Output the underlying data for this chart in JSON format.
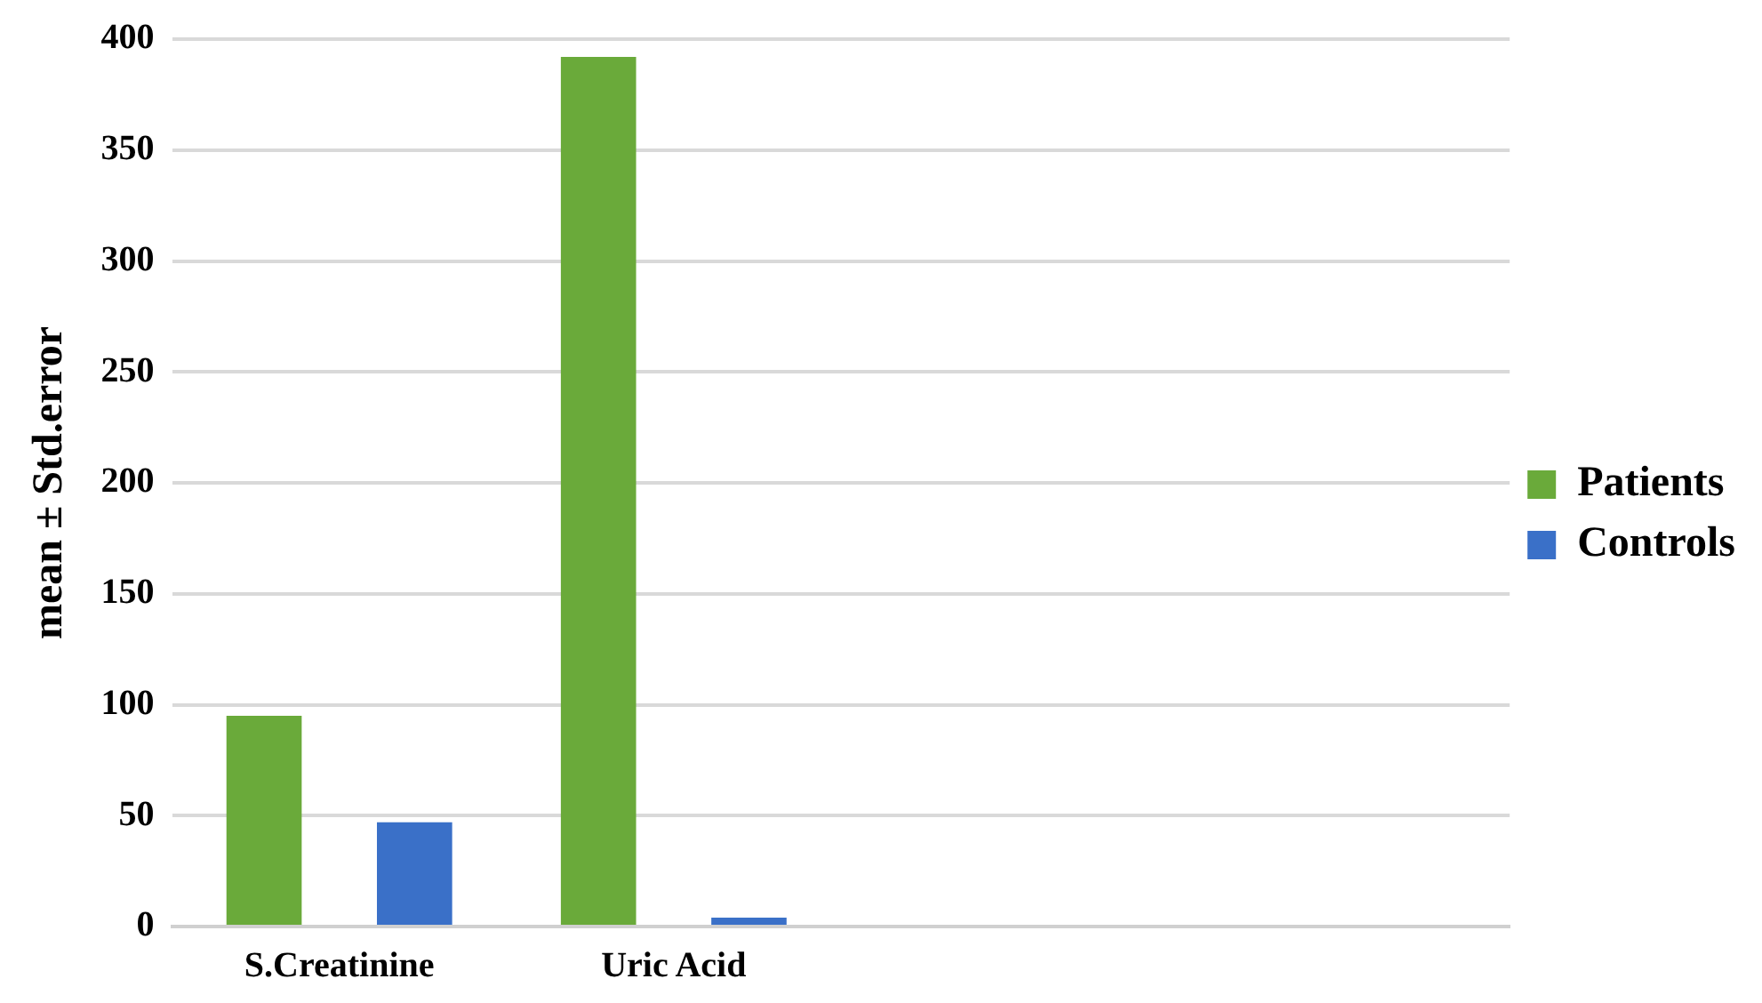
{
  "chart_data": {
    "type": "bar",
    "ylabel": "mean ± Std.error",
    "categories": [
      "S.Creatinine",
      "Uric Acid",
      null,
      null
    ],
    "series": [
      {
        "name": "Patients",
        "color": "#6aaa3a",
        "values": [
          95,
          392,
          null,
          null
        ]
      },
      {
        "name": "Controls",
        "color": "#3a70c8",
        "values": [
          47,
          4,
          null,
          null
        ]
      }
    ],
    "ylim": [
      0,
      400
    ],
    "yticks": [
      0,
      50,
      100,
      150,
      200,
      250,
      300,
      350,
      400
    ],
    "grid": "y",
    "legend": "right"
  }
}
